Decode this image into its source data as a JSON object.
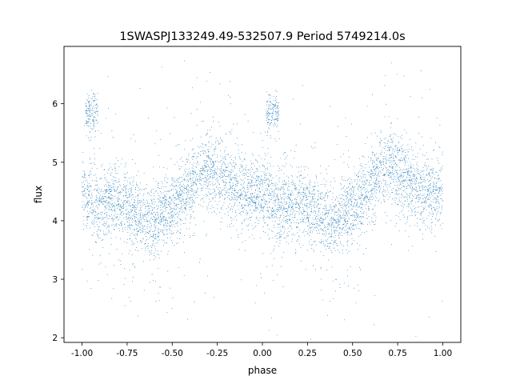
{
  "chart_data": {
    "type": "scatter",
    "title": "1SWASPJ133249.49-532507.9 Period 5749214.0s",
    "xlabel": "phase",
    "ylabel": "flux",
    "xlim": [
      -1.1,
      1.1
    ],
    "ylim": [
      1.92,
      6.98
    ],
    "xticks": [
      "-1.00",
      "-0.75",
      "-0.50",
      "-0.25",
      "0.00",
      "0.25",
      "0.50",
      "0.75",
      "1.00"
    ],
    "xtick_values": [
      -1.0,
      -0.75,
      -0.5,
      -0.25,
      0.0,
      0.25,
      0.5,
      0.75,
      1.0
    ],
    "yticks": [
      "2",
      "3",
      "4",
      "5",
      "6"
    ],
    "ytick_values": [
      2,
      3,
      4,
      5,
      6
    ],
    "grid": false,
    "legend": "none",
    "point_color": "#1f77b4",
    "series": [
      {
        "x": [
          -1.0,
          -0.95,
          -0.9,
          -0.85,
          -0.8,
          -0.75,
          -0.7,
          -0.65,
          -0.6,
          -0.55,
          -0.5,
          -0.45,
          -0.4,
          -0.35,
          -0.3,
          -0.25,
          -0.2,
          -0.15,
          -0.1,
          -0.05,
          0.0,
          0.05,
          0.1,
          0.15,
          0.2,
          0.25,
          0.3,
          0.35,
          0.4,
          0.45,
          0.5,
          0.55,
          0.6,
          0.65,
          0.7,
          0.75,
          0.8,
          0.85,
          0.9,
          0.95,
          1.0
        ],
        "y": [
          4.5,
          4.3,
          4.2,
          4.3,
          4.35,
          4.2,
          4.15,
          4.0,
          3.95,
          4.15,
          4.25,
          4.35,
          4.55,
          4.8,
          4.95,
          4.8,
          4.75,
          4.55,
          4.45,
          4.5,
          4.5,
          4.3,
          4.2,
          4.3,
          4.35,
          4.2,
          4.15,
          4.0,
          3.95,
          4.15,
          4.25,
          4.35,
          4.55,
          4.8,
          4.95,
          4.8,
          4.75,
          4.55,
          4.45,
          4.5,
          4.5
        ]
      }
    ],
    "clusters": [
      {
        "x_range": [
          -0.98,
          -0.91
        ],
        "y_center": 5.85
      },
      {
        "x_range": [
          0.02,
          0.09
        ],
        "y_center": 5.85
      }
    ]
  }
}
